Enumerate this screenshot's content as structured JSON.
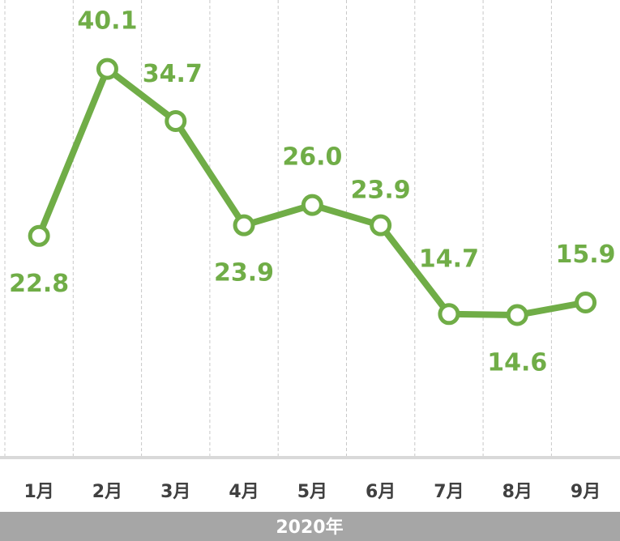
{
  "chart_data": {
    "type": "line",
    "categories": [
      "1月",
      "2月",
      "3月",
      "4月",
      "5月",
      "6月",
      "7月",
      "8月",
      "9月"
    ],
    "series": [
      {
        "color": "#70ad47",
        "values": [
          22.8,
          40.1,
          34.7,
          23.9,
          26.0,
          23.9,
          14.7,
          14.6,
          15.9
        ],
        "value_labels": [
          "22.8",
          "40.1",
          "34.7",
          "23.9",
          "26.0",
          "23.9",
          "14.7",
          "14.6",
          "15.9"
        ]
      }
    ],
    "xlabel": "2020年",
    "ylim": [
      0,
      46.4
    ],
    "grid": true
  }
}
